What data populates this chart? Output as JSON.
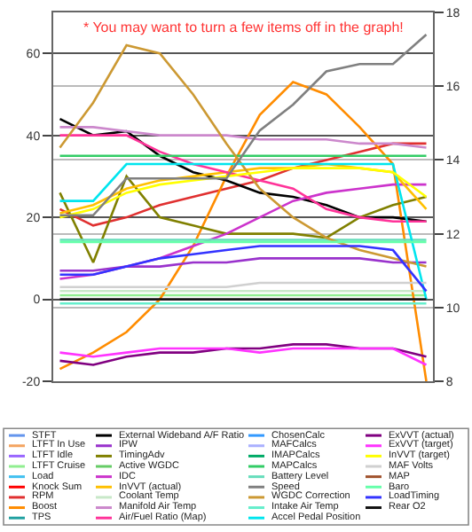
{
  "chart_data": {
    "type": "line",
    "categories": [
      null,
      null,
      null,
      null,
      null,
      null,
      null,
      null,
      null,
      null,
      null,
      null
    ],
    "ylim": [
      -20,
      70
    ],
    "yticks": [
      -20,
      0,
      20,
      40,
      60
    ],
    "y2lim": [
      8,
      18
    ],
    "y2ticks": [
      8,
      10,
      12,
      14,
      16,
      18
    ],
    "grid": "y",
    "legend": "bottom",
    "tick_labels": "y",
    "marker": "none",
    "line_style": "solid",
    "annotations": [
      "* You may want to turn a few items off in the graph!"
    ],
    "series": [
      {
        "name": "STFT",
        "color": "#6495ed",
        "values": [
          null,
          null,
          null,
          null,
          null,
          null,
          null,
          null,
          null,
          null,
          null,
          null
        ]
      },
      {
        "name": "LTFT In Use",
        "color": "#f4a460",
        "values": [
          null,
          null,
          null,
          null,
          null,
          null,
          null,
          null,
          null,
          null,
          null,
          null
        ]
      },
      {
        "name": "LTFT Idle",
        "color": "#9966ff",
        "values": [
          null,
          null,
          null,
          null,
          null,
          null,
          null,
          null,
          null,
          null,
          null,
          null
        ]
      },
      {
        "name": "LTFT Cruise",
        "color": "#90ee90",
        "values": [
          1,
          1,
          1,
          1,
          1,
          1,
          1,
          1,
          1,
          1,
          1,
          1
        ]
      },
      {
        "name": "Load",
        "color": "#40c0f0",
        "values": [
          null,
          null,
          null,
          null,
          null,
          null,
          null,
          null,
          null,
          null,
          null,
          null
        ]
      },
      {
        "name": "Knock Sum",
        "color": "#ff0000",
        "values": [
          null,
          null,
          null,
          null,
          null,
          null,
          null,
          null,
          null,
          null,
          null,
          null
        ]
      },
      {
        "name": "RPM",
        "color": "#e03030",
        "values": [
          22,
          18,
          20,
          23,
          25,
          27,
          29,
          32,
          34,
          36,
          38,
          38
        ]
      },
      {
        "name": "Boost",
        "color": "#ff8c00",
        "values": [
          -17,
          -13,
          -8,
          0,
          13,
          30,
          45,
          53,
          50,
          42,
          33,
          -20
        ]
      },
      {
        "name": "TPS",
        "color": "#20a0a0",
        "values": [
          null,
          null,
          null,
          null,
          null,
          null,
          null,
          null,
          null,
          null,
          null,
          null
        ]
      },
      {
        "name": "External Wideband A/F Ratio",
        "color": "#000000",
        "values": [
          44,
          40,
          41,
          35,
          31,
          29,
          26,
          25,
          23,
          20,
          20,
          19
        ]
      },
      {
        "name": "IPW",
        "color": "#9932cc",
        "values": [
          7,
          7,
          8,
          8,
          9,
          9,
          10,
          10,
          10,
          10,
          9,
          9
        ]
      },
      {
        "name": "TimingAdv",
        "color": "#808000",
        "values": [
          26,
          9,
          30,
          20,
          18,
          16,
          16,
          16,
          15,
          20,
          23,
          25
        ]
      },
      {
        "name": "Active WGDC",
        "color": "#66cc66",
        "values": [
          null,
          null,
          null,
          null,
          null,
          null,
          null,
          null,
          null,
          null,
          null,
          null
        ]
      },
      {
        "name": "IDC",
        "color": "#cc33cc",
        "values": [
          5,
          6,
          8,
          10,
          13,
          16,
          20,
          24,
          26,
          27,
          28,
          28
        ]
      },
      {
        "name": "InVVT (actual)",
        "color": "#ffc000",
        "values": [
          21,
          23,
          27,
          29,
          30,
          31,
          32,
          32,
          33,
          32,
          31,
          22
        ]
      },
      {
        "name": "Coolant Temp",
        "color": "#c8e8c8",
        "values": [
          2,
          2,
          2,
          2,
          2,
          2,
          2,
          2,
          2,
          2,
          2,
          2
        ]
      },
      {
        "name": "Manifold Air Temp",
        "color": "#cc88cc",
        "values": [
          42,
          42,
          41,
          40,
          40,
          40,
          39,
          39,
          39,
          38,
          38,
          37
        ]
      },
      {
        "name": "Air/Fuel Ratio (Map)",
        "color": "#ff3399",
        "values": [
          40,
          40,
          40,
          36,
          33,
          31,
          29,
          27,
          22,
          20,
          19,
          19
        ]
      },
      {
        "name": "ChosenCalc",
        "color": "#3399ff",
        "values": [
          null,
          null,
          null,
          null,
          null,
          null,
          null,
          null,
          null,
          null,
          null,
          null
        ]
      },
      {
        "name": "MAFCalcs",
        "color": "#aab0ff",
        "values": [
          null,
          null,
          null,
          null,
          null,
          null,
          null,
          null,
          null,
          null,
          null,
          null
        ]
      },
      {
        "name": "IMAPCalcs",
        "color": "#00aa66",
        "values": [
          null,
          null,
          null,
          null,
          null,
          null,
          null,
          null,
          null,
          null,
          null,
          null
        ]
      },
      {
        "name": "MAPCalcs",
        "color": "#33cc66",
        "values": [
          35,
          35,
          35,
          35,
          35,
          35,
          35,
          35,
          35,
          35,
          35,
          35
        ]
      },
      {
        "name": "Battery Level",
        "color": "#66ddbb",
        "values": [
          14.5,
          14.5,
          14.5,
          14.5,
          14.5,
          14.5,
          14.5,
          14.5,
          14.5,
          14.5,
          14.5,
          14.5
        ]
      },
      {
        "name": "Speed",
        "color": "#808080",
        "axis": "y2",
        "values": [
          12.5,
          12.5,
          13.5,
          13.5,
          13.5,
          13.5,
          14.8,
          15.5,
          16.4,
          16.6,
          16.6,
          17.4
        ]
      },
      {
        "name": "WGDC Correction",
        "color": "#cc9933",
        "values": [
          37,
          48,
          62,
          60,
          50,
          38,
          27,
          20,
          15,
          12,
          10,
          8
        ]
      },
      {
        "name": "Intake Air Temp",
        "color": "#66eecc",
        "values": [
          -1,
          -1,
          -1,
          -1,
          -1,
          -1,
          -1,
          -1,
          -1,
          -1,
          -1,
          -1
        ]
      },
      {
        "name": "Accel Pedal Position",
        "color": "#00e5ee",
        "values": [
          24,
          24,
          33,
          33,
          33,
          33,
          33,
          33,
          33,
          33,
          33,
          0
        ]
      },
      {
        "name": "ExVVT (actual)",
        "color": "#800080",
        "values": [
          -15,
          -16,
          -14,
          -13,
          -13,
          -12,
          -12,
          -11,
          -11,
          -12,
          -12,
          -14
        ]
      },
      {
        "name": "ExVVT (target)",
        "color": "#ff33ff",
        "values": [
          -13,
          -14,
          -13,
          -12,
          -12,
          -12,
          -13,
          -12,
          -12,
          -12,
          -12,
          -16
        ]
      },
      {
        "name": "InVVT (target)",
        "color": "#ffff00",
        "values": [
          20,
          22,
          26,
          28,
          29,
          30,
          31,
          32,
          32,
          32,
          31,
          25
        ]
      },
      {
        "name": "MAF Volts",
        "color": "#d0d0d0",
        "values": [
          3,
          3,
          3,
          3,
          3,
          3,
          4,
          4,
          4,
          4,
          4,
          4
        ]
      },
      {
        "name": "MAP",
        "color": "#a0522d",
        "values": [
          null,
          null,
          null,
          null,
          null,
          null,
          null,
          null,
          null,
          null,
          null,
          null
        ]
      },
      {
        "name": "Baro",
        "color": "#66ffaa",
        "values": [
          14,
          14,
          14,
          14,
          14,
          14,
          14,
          14,
          14,
          14,
          14,
          14
        ]
      },
      {
        "name": "LoadTiming",
        "color": "#3333ff",
        "values": [
          6,
          6,
          8,
          10,
          11,
          12,
          13,
          13,
          13,
          13,
          12,
          2
        ]
      },
      {
        "name": "Rear O2",
        "color": "#111111",
        "values": [
          0,
          0,
          0,
          0,
          0,
          0,
          0,
          0,
          0,
          0,
          0,
          0
        ]
      }
    ]
  }
}
